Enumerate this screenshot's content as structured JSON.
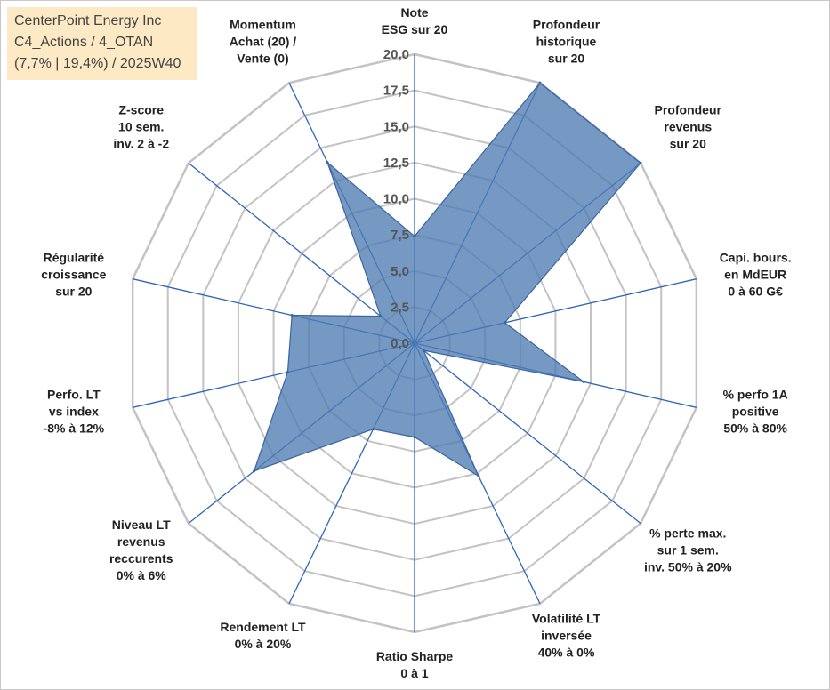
{
  "title_lines": [
    "CenterPoint Energy Inc",
    "C4_Actions / 4_OTAN",
    "(7,7% | 19,4%) / 2025W40"
  ],
  "chart_data": {
    "type": "radar",
    "rmin": 0,
    "rmax": 20,
    "grid": true,
    "tick_labels": [
      "0,0",
      "2,5",
      "5,0",
      "7,5",
      "10,0",
      "12,5",
      "15,0",
      "17,5",
      "20,0"
    ],
    "axes": [
      [
        "Note",
        "ESG sur 20"
      ],
      [
        "Profondeur",
        "historique",
        "sur 20"
      ],
      [
        "Profondeur",
        "revenus",
        "sur 20"
      ],
      [
        "Capi. bours.",
        "en MdEUR",
        "0 à 60 G€"
      ],
      [
        "% perfo 1A",
        "positive",
        "50% à 80%"
      ],
      [
        "% perte max.",
        "sur 1 sem.",
        "inv. 50% à 20%"
      ],
      [
        "Volatilité LT",
        "inversée",
        "40% à 0%"
      ],
      [
        "Ratio Sharpe",
        "0 à 1"
      ],
      [
        "Rendement LT",
        "0% à 20%"
      ],
      [
        "Niveau LT",
        "revenus",
        "reccurents",
        "0% à 6%"
      ],
      [
        "Perfo. LT",
        "vs index",
        "-8% à 12%"
      ],
      [
        "Régularité",
        "croissance",
        "sur 20"
      ],
      [
        "Z-score",
        "10 sem.",
        "inv. 2 à -2"
      ],
      [
        "Momentum",
        "Achat (20) /",
        "Vente (0)"
      ]
    ],
    "series": [
      {
        "values": [
          7.4,
          20.0,
          20.0,
          6.4,
          12.0,
          0.8,
          10.2,
          6.5,
          6.6,
          14.2,
          9.0,
          8.7,
          3.0,
          13.9
        ]
      }
    ],
    "colors": {
      "fill": "#4f7cb3",
      "fill_opacity": 0.78,
      "stroke": "#3a65a0",
      "spoke": "#2f66b9",
      "ring": "#c3c3c3"
    }
  }
}
